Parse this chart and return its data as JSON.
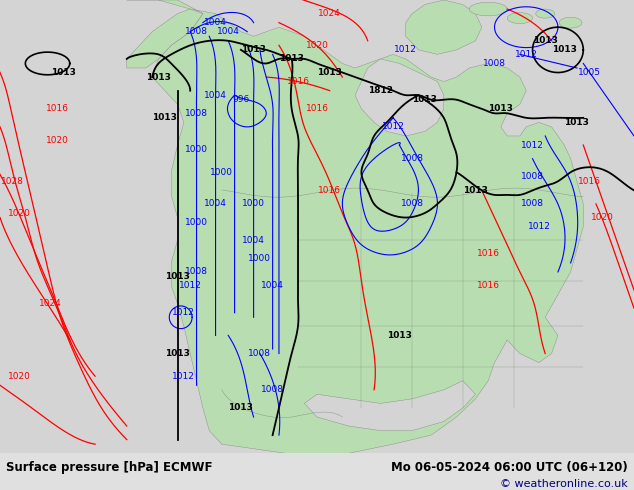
{
  "title_left": "Surface pressure [hPa] ECMWF",
  "title_right": "Mo 06-05-2024 06:00 UTC (06+120)",
  "copyright": "© weatheronline.co.uk",
  "bg_color": "#d4d4d4",
  "land_color": "#b8ddb0",
  "ocean_color": "#d4d4d4",
  "fig_width": 6.34,
  "fig_height": 4.9,
  "dpi": 100,
  "bottom_bar_color": "#e0e0e0",
  "title_fontsize": 8.5,
  "copyright_fontsize": 8,
  "copyright_color": "#000080"
}
